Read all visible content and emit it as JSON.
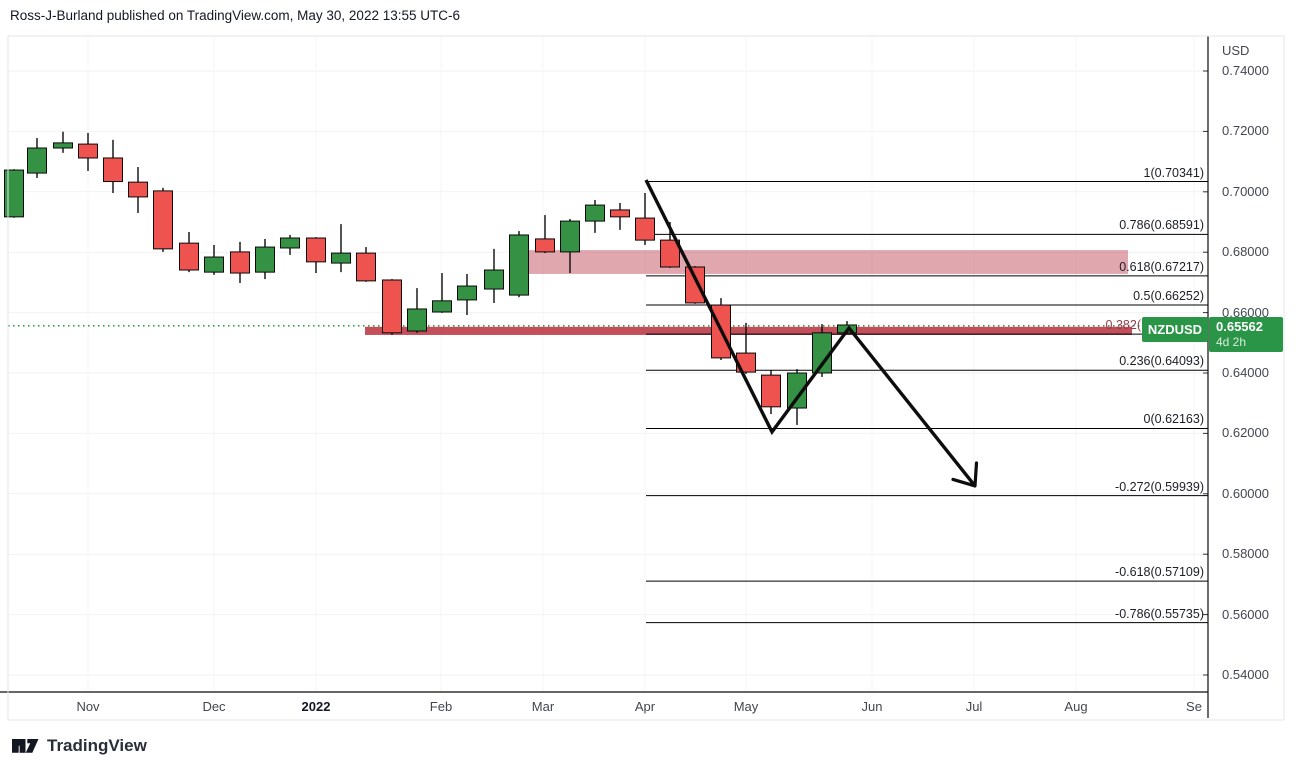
{
  "header": {
    "attribution": "Ross-J-Burland published on TradingView.com, May 30, 2022 13:55 UTC-6"
  },
  "footer": {
    "brand": "TradingView"
  },
  "chart_data": {
    "type": "candlestick",
    "symbol": "NZDUSD",
    "currency_label": "USD",
    "timeframe_visible": "weekly candles, Nov 2021 - May 2022",
    "ylim": [
      0.534,
      0.752
    ],
    "grid": true,
    "price_axis": {
      "ticks": [
        {
          "label": "0.74000",
          "value": 0.74
        },
        {
          "label": "0.72000",
          "value": 0.72
        },
        {
          "label": "0.70000",
          "value": 0.7
        },
        {
          "label": "0.68000",
          "value": 0.68
        },
        {
          "label": "0.66000",
          "value": 0.66
        },
        {
          "label": "0.64000",
          "value": 0.64
        },
        {
          "label": "0.62000",
          "value": 0.62
        },
        {
          "label": "0.60000",
          "value": 0.6
        },
        {
          "label": "0.58000",
          "value": 0.58
        },
        {
          "label": "0.56000",
          "value": 0.56
        },
        {
          "label": "0.54000",
          "value": 0.54
        }
      ]
    },
    "time_axis": [
      {
        "label": "Nov",
        "x": 88
      },
      {
        "label": "Dec",
        "x": 214
      },
      {
        "label": "2022",
        "x": 316,
        "bold": true
      },
      {
        "label": "Feb",
        "x": 441
      },
      {
        "label": "Mar",
        "x": 543
      },
      {
        "label": "Apr",
        "x": 645
      },
      {
        "label": "May",
        "x": 746
      },
      {
        "label": "Jun",
        "x": 872
      },
      {
        "label": "Jul",
        "x": 974
      },
      {
        "label": "Aug",
        "x": 1076
      },
      {
        "label": "Se",
        "x": 1194
      }
    ],
    "candles": [
      [
        14,
        0.6917,
        0.7075,
        0.6914,
        0.7072
      ],
      [
        37,
        0.7062,
        0.7178,
        0.7046,
        0.7145
      ],
      [
        63,
        0.7145,
        0.7199,
        0.7129,
        0.7162
      ],
      [
        88,
        0.7158,
        0.7195,
        0.7069,
        0.7112
      ],
      [
        113,
        0.7112,
        0.7172,
        0.6996,
        0.7034
      ],
      [
        138,
        0.7032,
        0.7082,
        0.693,
        0.6983
      ],
      [
        163,
        0.7003,
        0.7013,
        0.6801,
        0.6811
      ],
      [
        189,
        0.683,
        0.6867,
        0.6734,
        0.6741
      ],
      [
        214,
        0.6734,
        0.6824,
        0.6725,
        0.6784
      ],
      [
        240,
        0.6801,
        0.6834,
        0.6698,
        0.6731
      ],
      [
        265,
        0.6734,
        0.6844,
        0.6711,
        0.6817
      ],
      [
        290,
        0.6814,
        0.6857,
        0.6791,
        0.6847
      ],
      [
        316,
        0.6847,
        0.685,
        0.6731,
        0.6768
      ],
      [
        341,
        0.6764,
        0.6893,
        0.6734,
        0.6797
      ],
      [
        366,
        0.6797,
        0.6817,
        0.6702,
        0.6705
      ],
      [
        392,
        0.6708,
        0.6711,
        0.6526,
        0.6533
      ],
      [
        417,
        0.6539,
        0.6681,
        0.6533,
        0.6612
      ],
      [
        442,
        0.6602,
        0.6731,
        0.6599,
        0.6639
      ],
      [
        467,
        0.6642,
        0.6728,
        0.6592,
        0.6688
      ],
      [
        494,
        0.6678,
        0.6811,
        0.6632,
        0.6741
      ],
      [
        519,
        0.6658,
        0.687,
        0.6651,
        0.6857
      ],
      [
        545,
        0.6844,
        0.6923,
        0.6797,
        0.6801
      ],
      [
        570,
        0.6801,
        0.691,
        0.6731,
        0.6903
      ],
      [
        595,
        0.6903,
        0.6973,
        0.6864,
        0.6956
      ],
      [
        620,
        0.694,
        0.6963,
        0.6874,
        0.6917
      ],
      [
        645,
        0.6913,
        0.6996,
        0.6824,
        0.684
      ],
      [
        670,
        0.684,
        0.69,
        0.6748,
        0.6751
      ],
      [
        695,
        0.6751,
        0.6754,
        0.6629,
        0.6632
      ],
      [
        721,
        0.6625,
        0.6648,
        0.6443,
        0.645
      ],
      [
        746,
        0.6466,
        0.6566,
        0.6397,
        0.6403
      ],
      [
        771,
        0.6393,
        0.641,
        0.6264,
        0.6288
      ],
      [
        797,
        0.6284,
        0.6413,
        0.6228,
        0.64
      ],
      [
        822,
        0.64,
        0.6562,
        0.6387,
        0.6533
      ],
      [
        847,
        0.6533,
        0.6572,
        0.653,
        0.6559
      ]
    ],
    "fib_levels": [
      {
        "label": "1(0.70341)",
        "price": 0.70341
      },
      {
        "label": "0.786(0.68591)",
        "price": 0.68591
      },
      {
        "label": "0.618(0.67217)",
        "price": 0.67217
      },
      {
        "label": "0.5(0.66252)",
        "price": 0.66252
      },
      {
        "label": "0.382(",
        "price": 0.65287,
        "hidden_by_badge": true
      },
      {
        "label": "0.236(0.64093)",
        "price": 0.64093
      },
      {
        "label": "0(0.62163)",
        "price": 0.62163
      },
      {
        "label": "-0.272(0.59939)",
        "price": 0.59939
      },
      {
        "label": "-0.618(0.57109)",
        "price": 0.57109
      },
      {
        "label": "-0.786(0.55735)",
        "price": 0.55735
      }
    ],
    "fib_line_x": [
      646,
      1208
    ],
    "zones": [
      {
        "name": "resistance-zone-0618",
        "x1": 528,
        "x2": 1128,
        "price_top": 0.6807,
        "price_bottom": 0.6728,
        "color": "rgba(196,80,94,0.5)"
      },
      {
        "name": "support-turned-resistance-band",
        "x1": 365,
        "x2": 1132,
        "price_top": 0.6553,
        "price_bottom": 0.6526,
        "color": "rgba(184,48,62,0.85)"
      }
    ],
    "trend_path": {
      "points": [
        [
          646,
          0.7039
        ],
        [
          772,
          0.6205
        ],
        [
          849,
          0.6549
        ],
        [
          975,
          0.6026
        ]
      ],
      "arrow_end": true
    },
    "current_price": {
      "label": "0.65562",
      "value": 0.65562,
      "countdown": "4d 2h",
      "dotted_line": true
    },
    "colors": {
      "up": "#359245",
      "down": "#ef5350",
      "candle_border": "#0a0a0a",
      "grid": "#f0f2f5",
      "grid_vertical": "#f4f5f7",
      "fib_line": "#000000",
      "trend_line": "#0d0d0d",
      "dotted_price_line": "#2e9c4e",
      "badge": "#2b9547",
      "axis_border": "#0c0c0c",
      "frame": "#e4e6ea"
    }
  }
}
